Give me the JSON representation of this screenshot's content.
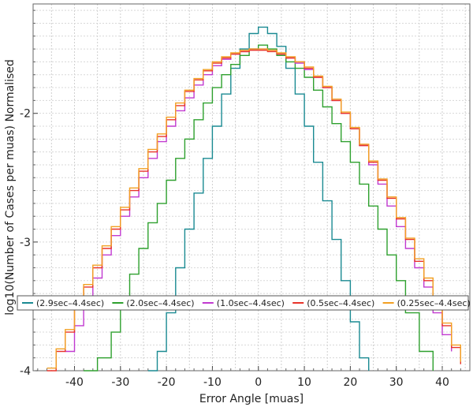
{
  "chart_data": {
    "type": "line",
    "xlabel": "Error Angle [muas]",
    "ylabel": "log10(Number of Cases per muas) Normalised",
    "xlim": [
      -49,
      46
    ],
    "ylim": [
      -4.0,
      -1.15
    ],
    "x_ticks": [
      -40,
      -30,
      -20,
      -10,
      0,
      10,
      20,
      30,
      40
    ],
    "x_tick_labels": [
      "-40",
      "-30",
      "-20",
      "-10",
      "0",
      "10",
      "20",
      "30",
      "40"
    ],
    "y_ticks": [
      -4,
      -3,
      -2
    ],
    "y_tick_labels": [
      "-4",
      "-3",
      "-2"
    ],
    "grid": true,
    "legend_position": "lower-center",
    "series": [
      {
        "name": "(2.9sec–4.4sec)",
        "color": "#1a8a92",
        "x": [
          -24,
          -22,
          -20,
          -18,
          -16,
          -14,
          -12,
          -10,
          -8,
          -6,
          -4,
          -2,
          0,
          2,
          4,
          6,
          8,
          10,
          12,
          14,
          16,
          18,
          20,
          22,
          24
        ],
        "y": [
          -4.0,
          -3.85,
          -3.55,
          -3.2,
          -2.9,
          -2.62,
          -2.35,
          -2.1,
          -1.85,
          -1.65,
          -1.5,
          -1.38,
          -1.33,
          -1.38,
          -1.48,
          -1.65,
          -1.85,
          -2.1,
          -2.38,
          -2.68,
          -2.98,
          -3.3,
          -3.62,
          -3.9,
          -4.0
        ]
      },
      {
        "name": "(2.0sec–4.4sec)",
        "color": "#2ea02e",
        "x": [
          -38,
          -35,
          -32,
          -30,
          -28,
          -26,
          -24,
          -22,
          -20,
          -18,
          -16,
          -14,
          -12,
          -10,
          -8,
          -6,
          -4,
          -2,
          0,
          2,
          4,
          6,
          8,
          10,
          12,
          14,
          16,
          18,
          20,
          22,
          24,
          26,
          28,
          30,
          32,
          35,
          38
        ],
        "y": [
          -4.0,
          -3.9,
          -3.7,
          -3.5,
          -3.25,
          -3.05,
          -2.85,
          -2.7,
          -2.52,
          -2.35,
          -2.2,
          -2.05,
          -1.92,
          -1.8,
          -1.7,
          -1.62,
          -1.55,
          -1.5,
          -1.47,
          -1.5,
          -1.55,
          -1.6,
          -1.65,
          -1.72,
          -1.82,
          -1.95,
          -2.08,
          -2.22,
          -2.38,
          -2.55,
          -2.72,
          -2.9,
          -3.1,
          -3.3,
          -3.55,
          -3.85,
          -4.0
        ]
      },
      {
        "name": "(1.0sec–4.4sec)",
        "color": "#c13ad0",
        "x": [
          -42,
          -40,
          -38,
          -36,
          -34,
          -32,
          -30,
          -28,
          -26,
          -24,
          -22,
          -20,
          -18,
          -16,
          -14,
          -12,
          -10,
          -8,
          -6,
          -4,
          -2,
          0,
          2,
          4,
          6,
          8,
          10,
          12,
          14,
          16,
          18,
          20,
          22,
          24,
          26,
          28,
          30,
          32,
          34,
          36,
          38,
          40,
          42
        ],
        "y": [
          -3.85,
          -3.65,
          -3.45,
          -3.28,
          -3.1,
          -2.95,
          -2.8,
          -2.65,
          -2.5,
          -2.35,
          -2.22,
          -2.1,
          -1.98,
          -1.88,
          -1.78,
          -1.7,
          -1.63,
          -1.58,
          -1.54,
          -1.52,
          -1.5,
          -1.5,
          -1.51,
          -1.54,
          -1.57,
          -1.61,
          -1.66,
          -1.72,
          -1.8,
          -1.9,
          -2.0,
          -2.12,
          -2.25,
          -2.4,
          -2.55,
          -2.72,
          -2.88,
          -3.05,
          -3.2,
          -3.35,
          -3.55,
          -3.72,
          -3.85
        ]
      },
      {
        "name": "(0.5sec–4.4sec)",
        "color": "#e8332a",
        "x": [
          -46,
          -44,
          -42,
          -40,
          -38,
          -36,
          -34,
          -32,
          -30,
          -28,
          -26,
          -24,
          -22,
          -20,
          -18,
          -16,
          -14,
          -12,
          -10,
          -8,
          -6,
          -4,
          -2,
          0,
          2,
          4,
          6,
          8,
          10,
          12,
          14,
          16,
          18,
          20,
          22,
          24,
          26,
          28,
          30,
          32,
          34,
          36,
          38,
          40,
          42,
          44
        ],
        "y": [
          -4.0,
          -3.85,
          -3.7,
          -3.5,
          -3.35,
          -3.2,
          -3.05,
          -2.9,
          -2.75,
          -2.6,
          -2.45,
          -2.3,
          -2.18,
          -2.05,
          -1.94,
          -1.83,
          -1.74,
          -1.67,
          -1.61,
          -1.57,
          -1.54,
          -1.52,
          -1.51,
          -1.51,
          -1.52,
          -1.54,
          -1.57,
          -1.6,
          -1.65,
          -1.72,
          -1.8,
          -1.9,
          -2.0,
          -2.12,
          -2.25,
          -2.38,
          -2.52,
          -2.66,
          -2.82,
          -2.98,
          -3.15,
          -3.3,
          -3.48,
          -3.65,
          -3.82,
          -3.95
        ]
      },
      {
        "name": "(0.25sec–4.4sec)",
        "color": "#f2a023",
        "x": [
          -46,
          -44,
          -42,
          -40,
          -38,
          -36,
          -34,
          -32,
          -30,
          -28,
          -26,
          -24,
          -22,
          -20,
          -18,
          -16,
          -14,
          -12,
          -10,
          -8,
          -6,
          -4,
          -2,
          0,
          2,
          4,
          6,
          8,
          10,
          12,
          14,
          16,
          18,
          20,
          22,
          24,
          26,
          28,
          30,
          32,
          34,
          36,
          38,
          40,
          42,
          44
        ],
        "y": [
          -3.98,
          -3.83,
          -3.68,
          -3.48,
          -3.33,
          -3.18,
          -3.03,
          -2.88,
          -2.73,
          -2.58,
          -2.43,
          -2.28,
          -2.16,
          -2.03,
          -1.92,
          -1.82,
          -1.73,
          -1.66,
          -1.6,
          -1.56,
          -1.53,
          -1.51,
          -1.5,
          -1.5,
          -1.51,
          -1.53,
          -1.56,
          -1.6,
          -1.64,
          -1.71,
          -1.79,
          -1.89,
          -1.99,
          -2.11,
          -2.24,
          -2.37,
          -2.51,
          -2.65,
          -2.81,
          -2.97,
          -3.13,
          -3.28,
          -3.46,
          -3.63,
          -3.8,
          -3.93
        ]
      }
    ]
  }
}
